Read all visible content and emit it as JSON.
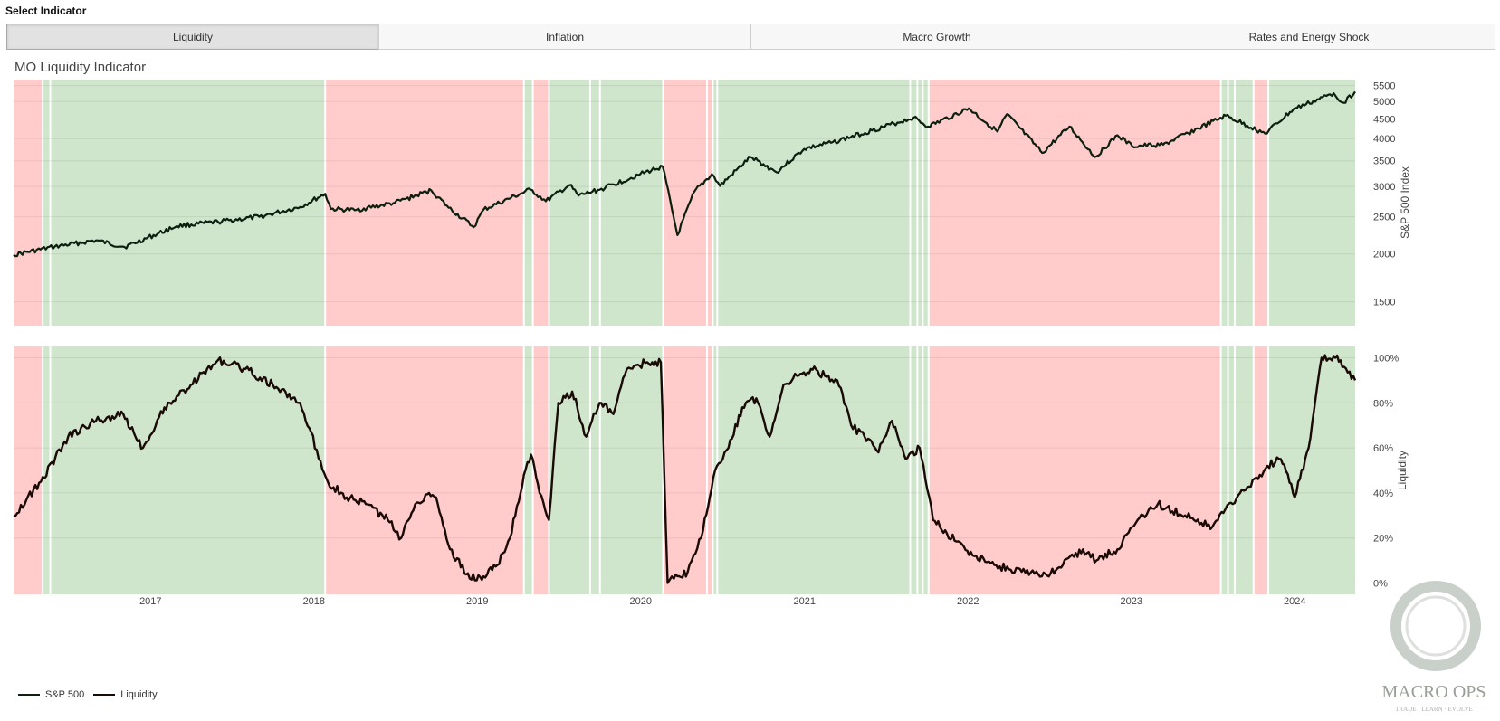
{
  "header": {
    "select_label": "Select Indicator"
  },
  "tabs": [
    {
      "label": "Liquidity",
      "active": true
    },
    {
      "label": "Inflation",
      "active": false
    },
    {
      "label": "Macro Growth",
      "active": false
    },
    {
      "label": "Rates and Energy Shock",
      "active": false
    }
  ],
  "chart_title": "MO Liquidity Indicator",
  "logo": {
    "text": "MACRO OPS",
    "tagline": "TRADE · LEARN · EVOLVE"
  },
  "colors": {
    "green_regime": "#cfe5cc",
    "red_regime": "#ffcccb",
    "line": "#0d200f",
    "line_liquidity": "#1a0a06"
  },
  "chart_data": [
    {
      "type": "line",
      "title": "",
      "ylabel": "S&P 500 Index",
      "y_scale": "log",
      "ylim": [
        1300,
        5700
      ],
      "y_ticks": [
        1500,
        2000,
        2500,
        3000,
        3500,
        4000,
        4500,
        5000,
        5500
      ],
      "series": [
        {
          "name": "S&P 500",
          "x": [
            "2016-03-01",
            "2016-06-01",
            "2016-09-01",
            "2016-11-04",
            "2017-03-01",
            "2017-06-01",
            "2017-09-01",
            "2017-12-01",
            "2018-01-26",
            "2018-02-08",
            "2018-04-02",
            "2018-07-01",
            "2018-09-20",
            "2018-10-29",
            "2018-12-24",
            "2019-01-15",
            "2019-04-30",
            "2019-06-03",
            "2019-07-26",
            "2019-08-15",
            "2019-10-01",
            "2019-12-31",
            "2020-02-19",
            "2020-03-23",
            "2020-04-30",
            "2020-06-08",
            "2020-06-26",
            "2020-09-02",
            "2020-10-30",
            "2020-12-31",
            "2021-03-01",
            "2021-06-01",
            "2021-09-02",
            "2021-10-04",
            "2022-01-03",
            "2022-03-08",
            "2022-03-29",
            "2022-06-16",
            "2022-08-16",
            "2022-10-12",
            "2022-12-01",
            "2023-01-03",
            "2023-03-13",
            "2023-07-31",
            "2023-10-27",
            "2023-12-29",
            "2024-03-28",
            "2024-04-19",
            "2024-05-15"
          ],
          "y": [
            1990,
            2090,
            2170,
            2085,
            2365,
            2425,
            2500,
            2650,
            2870,
            2620,
            2600,
            2720,
            2930,
            2640,
            2350,
            2610,
            2945,
            2745,
            3025,
            2840,
            2940,
            3230,
            3385,
            2240,
            2910,
            3230,
            3010,
            3580,
            3270,
            3760,
            3900,
            4200,
            4540,
            4300,
            4795,
            4170,
            4630,
            3670,
            4300,
            3580,
            4080,
            3820,
            3855,
            4590,
            4120,
            4770,
            5250,
            4960,
            5300
          ]
        }
      ]
    },
    {
      "type": "line",
      "title": "",
      "ylabel": "Liquidity",
      "ylim": [
        -5,
        105
      ],
      "y_ticks": [
        0,
        20,
        40,
        60,
        80,
        100
      ],
      "y_tick_labels": [
        "0%",
        "20%",
        "40%",
        "60%",
        "80%",
        "100%"
      ],
      "x_ticks": [
        "2017",
        "2018",
        "2019",
        "2020",
        "2021",
        "2022",
        "2023",
        "2024"
      ],
      "series": [
        {
          "name": "Liquidity",
          "x": [
            "2016-03-01",
            "2016-05-01",
            "2016-07-01",
            "2016-09-01",
            "2016-11-01",
            "2016-12-15",
            "2017-02-01",
            "2017-04-01",
            "2017-06-01",
            "2017-08-01",
            "2017-10-01",
            "2017-12-01",
            "2018-02-01",
            "2018-03-15",
            "2018-05-01",
            "2018-06-15",
            "2018-07-15",
            "2018-08-15",
            "2018-09-15",
            "2018-10-01",
            "2018-11-01",
            "2018-12-15",
            "2019-01-15",
            "2019-02-15",
            "2019-03-15",
            "2019-04-15",
            "2019-05-01",
            "2019-05-20",
            "2019-06-10",
            "2019-07-01",
            "2019-08-01",
            "2019-09-01",
            "2019-10-01",
            "2019-11-01",
            "2019-12-01",
            "2020-01-15",
            "2020-02-15",
            "2020-03-01",
            "2020-03-15",
            "2020-04-15",
            "2020-05-15",
            "2020-06-15",
            "2020-07-15",
            "2020-08-15",
            "2020-09-15",
            "2020-10-15",
            "2020-11-15",
            "2020-12-15",
            "2021-01-15",
            "2021-02-15",
            "2021-03-15",
            "2021-04-15",
            "2021-05-15",
            "2021-06-15",
            "2021-07-15",
            "2021-08-15",
            "2021-09-15",
            "2021-10-15",
            "2021-11-15",
            "2021-12-15",
            "2022-01-15",
            "2022-03-01",
            "2022-05-01",
            "2022-06-15",
            "2022-08-01",
            "2022-09-15",
            "2022-10-15",
            "2022-12-01",
            "2023-01-15",
            "2023-03-01",
            "2023-05-01",
            "2023-07-01",
            "2023-09-01",
            "2023-10-15",
            "2023-11-01",
            "2023-12-01",
            "2024-01-01",
            "2024-02-01",
            "2024-03-01",
            "2024-04-01",
            "2024-04-20",
            "2024-05-15"
          ],
          "y": [
            30,
            45,
            65,
            72,
            75,
            60,
            78,
            88,
            99,
            95,
            88,
            80,
            45,
            38,
            35,
            28,
            20,
            35,
            40,
            38,
            15,
            2,
            3,
            8,
            20,
            48,
            57,
            40,
            28,
            80,
            85,
            65,
            80,
            75,
            95,
            98,
            98,
            0,
            2,
            5,
            20,
            50,
            60,
            78,
            82,
            65,
            88,
            92,
            95,
            92,
            90,
            70,
            65,
            58,
            72,
            55,
            60,
            28,
            22,
            18,
            12,
            8,
            5,
            3,
            8,
            15,
            10,
            15,
            28,
            35,
            30,
            25,
            40,
            48,
            52,
            55,
            38,
            60,
            100,
            100,
            96,
            90
          ]
        }
      ]
    }
  ]
}
